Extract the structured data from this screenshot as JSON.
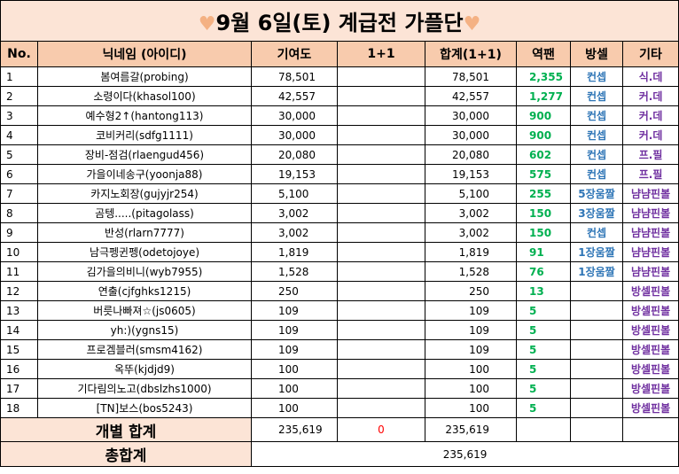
{
  "title": {
    "heart_left": "♥",
    "text": "9월 6일(토) 계급전 가플단",
    "heart_right": "♥"
  },
  "headers": {
    "no": "No.",
    "nickname": "닉네임 (아이디)",
    "contribution": "기여도",
    "one_plus_one": "1+1",
    "total": "합계(1+1)",
    "yeokpaen": "역팬",
    "bangsel": "방셀",
    "etc": "기타"
  },
  "rows": [
    {
      "no": "1",
      "name": "봄여름갈(probing)",
      "contrib": "78,501",
      "opo": "",
      "total": "78,501",
      "yp": "2,355",
      "bs": "컨셉",
      "etc": "식.데"
    },
    {
      "no": "2",
      "name": "소령이다(khasol100)",
      "contrib": "42,557",
      "opo": "",
      "total": "42,557",
      "yp": "1,277",
      "bs": "컨셉",
      "etc": "커.데"
    },
    {
      "no": "3",
      "name": "예수형2↑(hantong113)",
      "contrib": "30,000",
      "opo": "",
      "total": "30,000",
      "yp": "900",
      "bs": "컨셉",
      "etc": "커.데"
    },
    {
      "no": "4",
      "name": "코비커리(sdfg1111)",
      "contrib": "30,000",
      "opo": "",
      "total": "30,000",
      "yp": "900",
      "bs": "컨셉",
      "etc": "커.데"
    },
    {
      "no": "5",
      "name": "장비-점검(rlaengud456)",
      "contrib": "20,080",
      "opo": "",
      "total": "20,080",
      "yp": "602",
      "bs": "컨셉",
      "etc": "프.필"
    },
    {
      "no": "6",
      "name": "가을이네송구(yoonja88)",
      "contrib": "19,153",
      "opo": "",
      "total": "19,153",
      "yp": "575",
      "bs": "컨셉",
      "etc": "프.필"
    },
    {
      "no": "7",
      "name": "카지노회장(gujyjr254)",
      "contrib": "5,100",
      "opo": "",
      "total": "5,100",
      "yp": "255",
      "bs": "5장움짤",
      "etc": "냠냠핀볼"
    },
    {
      "no": "8",
      "name": "곰텡.....(pitagolass)",
      "contrib": "3,002",
      "opo": "",
      "total": "3,002",
      "yp": "150",
      "bs": "3장움짤",
      "etc": "냠냠핀볼"
    },
    {
      "no": "9",
      "name": "반성(rlarn7777)",
      "contrib": "3,002",
      "opo": "",
      "total": "3,002",
      "yp": "150",
      "bs": "컨셉",
      "etc": "냠냠핀볼"
    },
    {
      "no": "10",
      "name": "남극펭귄펭(odetojoye)",
      "contrib": "1,819",
      "opo": "",
      "total": "1,819",
      "yp": "91",
      "bs": "1장움짤",
      "etc": "냠냠핀볼"
    },
    {
      "no": "11",
      "name": "김가을의비니(wyb7955)",
      "contrib": "1,528",
      "opo": "",
      "total": "1,528",
      "yp": "76",
      "bs": "1장움짤",
      "etc": "냠냠핀볼"
    },
    {
      "no": "12",
      "name": "연출(cjfghks1215)",
      "contrib": "250",
      "opo": "",
      "total": "250",
      "yp": "13",
      "bs": "",
      "etc": "방셀핀볼"
    },
    {
      "no": "13",
      "name": "버릇나빠져☆(js0605)",
      "contrib": "109",
      "opo": "",
      "total": "109",
      "yp": "5",
      "bs": "",
      "etc": "방셀핀볼"
    },
    {
      "no": "14",
      "name": "yh:)(ygns15)",
      "contrib": "109",
      "opo": "",
      "total": "109",
      "yp": "5",
      "bs": "",
      "etc": "방셀핀볼"
    },
    {
      "no": "15",
      "name": "프로겜블러(smsm4162)",
      "contrib": "109",
      "opo": "",
      "total": "109",
      "yp": "5",
      "bs": "",
      "etc": "방셀핀볼"
    },
    {
      "no": "16",
      "name": "옥뚜(kjdjd9)",
      "contrib": "100",
      "opo": "",
      "total": "100",
      "yp": "5",
      "bs": "",
      "etc": "방셀핀볼"
    },
    {
      "no": "17",
      "name": "기다림의노고(dbslzhs1000)",
      "contrib": "100",
      "opo": "",
      "total": "100",
      "yp": "5",
      "bs": "",
      "etc": "방셀핀볼"
    },
    {
      "no": "18",
      "name": "[TN]보스(bos5243)",
      "contrib": "100",
      "opo": "",
      "total": "100",
      "yp": "5",
      "bs": "",
      "etc": "방셀핀볼"
    }
  ],
  "individual_total": {
    "label": "개별 합계",
    "contrib": "235,619",
    "opo": "0",
    "total": "235,619"
  },
  "grand_total": {
    "label": "총합계",
    "value": "235,619"
  },
  "colors": {
    "title_bg": "#fce4d6",
    "header_bg": "#f8cbad",
    "heart": "#f4b183",
    "yeokpaen": "#00b050",
    "bangsel": "#2e75b6",
    "etc": "#7030a0",
    "zero": "#ff0000"
  }
}
